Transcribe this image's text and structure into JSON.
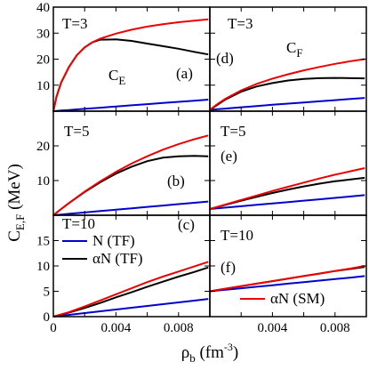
{
  "figure": {
    "ylabel": "C",
    "ylabel_sub": "E,F",
    "ylabel_unit": " (MeV)",
    "xlabel": "ρ",
    "xlabel_sub": "b",
    "xlabel_unit_pre": " (fm",
    "xlabel_unit_sup": "-3",
    "xlabel_unit_post": ")"
  },
  "colors": {
    "N_TF": "#0000cc",
    "aN_TF": "#000000",
    "aN_SM": "#ee0000"
  },
  "legend": [
    {
      "label": "N (TF)",
      "color": "#0000cc"
    },
    {
      "label": "αN (TF)",
      "color": "#000000"
    },
    {
      "label": "αN (SM)",
      "color": "#ee0000"
    }
  ],
  "chart_data": [
    {
      "type": "line",
      "panel": "a",
      "temp_label": "T=3",
      "panel_label": "(a)",
      "inner_label": "C",
      "inner_label_sub": "E",
      "xlim": [
        0,
        0.01
      ],
      "ylim": [
        0,
        40
      ],
      "yticks": [
        0,
        10,
        20,
        30,
        40
      ],
      "ytick_labels": [
        "",
        "10",
        "20",
        "30",
        "40"
      ],
      "x": [
        0,
        0.0002,
        0.0005,
        0.001,
        0.0015,
        0.002,
        0.0025,
        0.003,
        0.004,
        0.005,
        0.006,
        0.007,
        0.008,
        0.009,
        0.0099
      ],
      "series": [
        {
          "key": "N_TF",
          "values": [
            0,
            0.09,
            0.23,
            0.45,
            0.68,
            0.9,
            1.13,
            1.35,
            1.8,
            2.25,
            2.7,
            3.15,
            3.6,
            4.05,
            4.45
          ]
        },
        {
          "key": "aN_TF",
          "values": [
            0,
            5.5,
            11,
            17,
            21.5,
            24.5,
            26.5,
            27.5,
            27.6,
            27,
            26,
            25,
            24,
            22.8,
            21.8
          ]
        },
        {
          "key": "aN_SM",
          "values": [
            0,
            5.5,
            11,
            17,
            21.5,
            24.5,
            26.5,
            27.9,
            29.8,
            31.3,
            32.5,
            33.4,
            34.2,
            34.8,
            35.3
          ]
        }
      ]
    },
    {
      "type": "line",
      "panel": "d",
      "temp_label": "T=3",
      "panel_label": "(d)",
      "inner_label": "C",
      "inner_label_sub": "F",
      "xlim": [
        0,
        0.01
      ],
      "ylim": [
        0,
        40
      ],
      "yticks": [
        0,
        10,
        20,
        30,
        40
      ],
      "ytick_labels": [],
      "x": [
        0,
        0.0005,
        0.001,
        0.002,
        0.003,
        0.004,
        0.005,
        0.006,
        0.007,
        0.008,
        0.009,
        0.0099
      ],
      "series": [
        {
          "key": "N_TF",
          "values": [
            0.5,
            0.75,
            1,
            1.5,
            2,
            2.45,
            2.9,
            3.35,
            3.8,
            4.25,
            4.7,
            5.1
          ]
        },
        {
          "key": "aN_TF",
          "values": [
            0.5,
            2.5,
            4.5,
            7.5,
            9.5,
            10.8,
            11.8,
            12.4,
            12.7,
            12.8,
            12.7,
            12.6
          ]
        },
        {
          "key": "aN_SM",
          "values": [
            0.5,
            2.8,
            4.8,
            8,
            10.5,
            12.5,
            14.2,
            15.7,
            17,
            18.2,
            19.2,
            20
          ]
        }
      ]
    },
    {
      "type": "line",
      "panel": "b",
      "temp_label": "T=5",
      "panel_label": "(b)",
      "xlim": [
        0,
        0.01
      ],
      "ylim": [
        0,
        30
      ],
      "yticks": [
        0,
        10,
        20,
        30
      ],
      "ytick_labels": [
        "",
        "10",
        "20",
        ""
      ],
      "x": [
        0,
        0.0005,
        0.001,
        0.002,
        0.003,
        0.004,
        0.005,
        0.006,
        0.007,
        0.008,
        0.009,
        0.0099
      ],
      "series": [
        {
          "key": "N_TF",
          "values": [
            0,
            0.2,
            0.4,
            0.8,
            1.2,
            1.6,
            2,
            2.4,
            2.8,
            3.2,
            3.6,
            3.95
          ]
        },
        {
          "key": "aN_TF",
          "values": [
            0,
            1.8,
            3.5,
            6.7,
            9.5,
            12,
            14,
            15.6,
            16.6,
            17,
            17.1,
            17
          ]
        },
        {
          "key": "aN_SM",
          "values": [
            0,
            1.8,
            3.5,
            6.8,
            9.8,
            12.5,
            14.9,
            17,
            18.9,
            20.5,
            21.9,
            23
          ]
        }
      ]
    },
    {
      "type": "line",
      "panel": "e",
      "temp_label": "T=5",
      "panel_label": "(e)",
      "xlim": [
        0,
        0.01
      ],
      "ylim": [
        0,
        30
      ],
      "yticks": [
        0,
        10,
        20,
        30
      ],
      "ytick_labels": [],
      "x": [
        0,
        0.001,
        0.002,
        0.003,
        0.004,
        0.005,
        0.006,
        0.007,
        0.008,
        0.009,
        0.0099
      ],
      "series": [
        {
          "key": "N_TF",
          "values": [
            1.8,
            2.2,
            2.6,
            3,
            3.4,
            3.8,
            4.2,
            4.6,
            5,
            5.4,
            5.8
          ]
        },
        {
          "key": "aN_TF",
          "values": [
            1.8,
            3,
            4.2,
            5.3,
            6.4,
            7.4,
            8.3,
            9.1,
            9.8,
            10.3,
            10.8
          ]
        },
        {
          "key": "aN_SM",
          "values": [
            1.8,
            3.1,
            4.4,
            5.7,
            7,
            8.2,
            9.4,
            10.6,
            11.7,
            12.7,
            13.6
          ]
        }
      ]
    },
    {
      "type": "line",
      "panel": "c",
      "temp_label": "T=10",
      "panel_label": "(c)",
      "xlim": [
        0,
        0.01
      ],
      "ylim": [
        0,
        20
      ],
      "yticks": [
        0,
        5,
        10,
        15
      ],
      "ytick_labels": [
        "0",
        "5",
        "10",
        "15"
      ],
      "xticks": [
        0,
        0.004,
        0.008
      ],
      "xtick_labels": [
        "0",
        "0.004",
        "0.008"
      ],
      "x": [
        0,
        0.001,
        0.002,
        0.003,
        0.004,
        0.005,
        0.006,
        0.007,
        0.008,
        0.009,
        0.0099
      ],
      "series": [
        {
          "key": "N_TF",
          "values": [
            0,
            0.35,
            0.7,
            1.05,
            1.4,
            1.75,
            2.1,
            2.45,
            2.8,
            3.15,
            3.5
          ]
        },
        {
          "key": "aN_TF",
          "values": [
            0,
            0.8,
            1.7,
            2.7,
            3.8,
            4.8,
            5.9,
            6.9,
            7.9,
            8.8,
            9.7
          ]
        },
        {
          "key": "aN_SM",
          "values": [
            0,
            0.9,
            2,
            3.2,
            4.4,
            5.6,
            6.8,
            7.9,
            8.9,
            9.9,
            10.8
          ]
        }
      ]
    },
    {
      "type": "line",
      "panel": "f",
      "temp_label": "T=10",
      "panel_label": "(f)",
      "xlim": [
        0,
        0.01
      ],
      "ylim": [
        0,
        20
      ],
      "yticks": [
        0,
        5,
        10,
        15
      ],
      "ytick_labels": [],
      "xticks": [
        0,
        0.004,
        0.008
      ],
      "xtick_labels": [
        "",
        "0.004",
        "0.008"
      ],
      "x": [
        0,
        0.001,
        0.002,
        0.003,
        0.004,
        0.005,
        0.006,
        0.007,
        0.008,
        0.009,
        0.0099
      ],
      "series": [
        {
          "key": "N_TF",
          "values": [
            5,
            5.3,
            5.6,
            5.9,
            6.2,
            6.5,
            6.8,
            7.1,
            7.4,
            7.7,
            8
          ]
        },
        {
          "key": "aN_TF",
          "values": [
            5,
            5.5,
            6,
            6.5,
            7,
            7.5,
            8,
            8.5,
            9,
            9.4,
            9.8
          ]
        },
        {
          "key": "aN_SM",
          "values": [
            5,
            5.5,
            6,
            6.5,
            7,
            7.5,
            8,
            8.5,
            9,
            9.5,
            10
          ]
        }
      ]
    }
  ]
}
